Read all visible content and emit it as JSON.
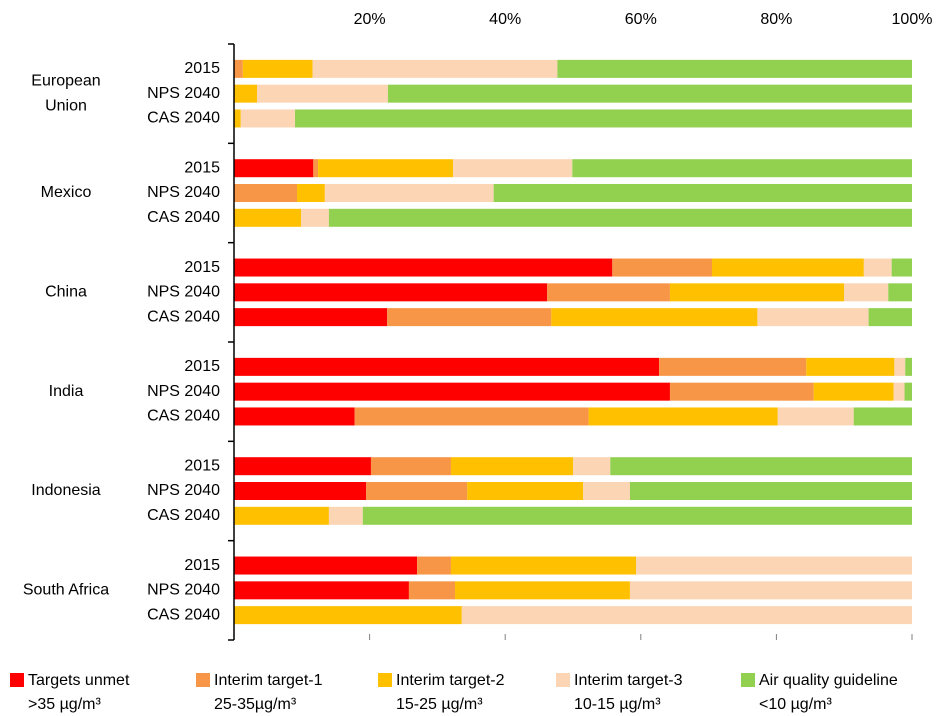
{
  "chart_data": {
    "type": "stacked-barh",
    "groups": [
      [
        "European",
        "Union"
      ],
      [
        "Mexico"
      ],
      [
        "China"
      ],
      [
        "India"
      ],
      [
        "Indonesia"
      ],
      [
        "South Africa"
      ]
    ],
    "categories": [
      "2015",
      "NPS 2040",
      "CAS 2040",
      "2015",
      "NPS 2040",
      "CAS 2040",
      "2015",
      "NPS 2040",
      "CAS 2040",
      "2015",
      "NPS 2040",
      "CAS 2040",
      "2015",
      "NPS 2040",
      "CAS 2040",
      "2015",
      "NPS 2040",
      "CAS 2040"
    ],
    "series": [
      {
        "name": "Targets unmet",
        "sublabel": ">35 µg/m³",
        "color": "#ff0000",
        "values": [
          0,
          0,
          0,
          11.7,
          0,
          0,
          55.8,
          46.2,
          22.6,
          62.7,
          64.3,
          17.8,
          20.2,
          19.5,
          0,
          27.0,
          25.8,
          0
        ]
      },
      {
        "name": "Interim target-1",
        "sublabel": "25-35µg/m³",
        "color": "#f79646",
        "values": [
          1.3,
          0,
          0,
          0.7,
          9.3,
          0,
          14.7,
          18.1,
          24.2,
          21.7,
          21.2,
          34.5,
          11.8,
          14.9,
          0,
          5.0,
          6.8,
          0
        ]
      },
      {
        "name": "Interim target-2",
        "sublabel": "15-25 µg/m³",
        "color": "#ffc000",
        "values": [
          10.3,
          3.4,
          1.0,
          19.9,
          4.1,
          9.9,
          22.4,
          25.7,
          30.4,
          13.0,
          11.8,
          27.9,
          18.0,
          17.1,
          14.0,
          27.3,
          25.8,
          33.6
        ]
      },
      {
        "name": "Interim target-3",
        "sublabel": "10-15 µg/m³",
        "color": "#fcd5b4",
        "values": [
          36.1,
          19.3,
          8.0,
          17.6,
          24.9,
          4.1,
          4.1,
          6.5,
          16.4,
          1.6,
          1.6,
          11.2,
          5.5,
          6.9,
          5.0,
          40.7,
          41.6,
          66.4
        ]
      },
      {
        "name": "Air quality guideline",
        "sublabel": "<10 µg/m³",
        "color": "#92d050",
        "values": [
          52.3,
          77.3,
          91.0,
          50.1,
          61.7,
          86.0,
          3.0,
          3.5,
          6.4,
          1.0,
          1.1,
          8.6,
          44.5,
          41.6,
          81.0,
          0,
          0,
          0
        ]
      }
    ],
    "xlim": [
      0,
      100
    ],
    "xticks": [
      {
        "value": 20,
        "label": "20%"
      },
      {
        "value": 40,
        "label": "40%"
      },
      {
        "value": 60,
        "label": "60%"
      },
      {
        "value": 80,
        "label": "80%"
      },
      {
        "value": 100,
        "label": "100%"
      }
    ]
  }
}
